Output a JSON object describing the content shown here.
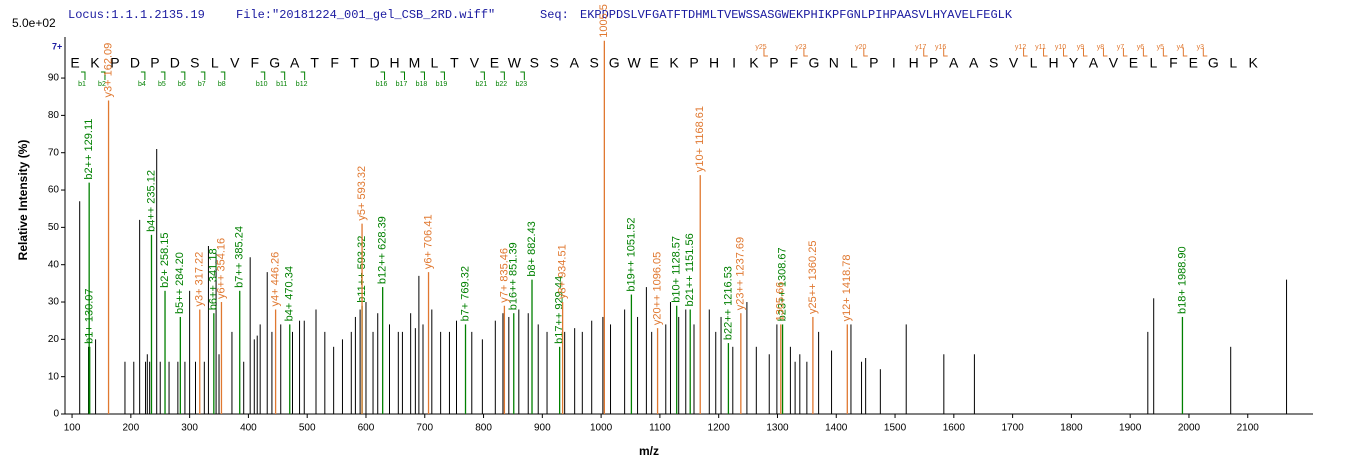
{
  "header": {
    "locus": "Locus:1.1.1.2135.19",
    "file": "File:\"20181224_001_gel_CSB_2RD.wiff\"",
    "seq_label": "Seq:",
    "seq": "EKPDPDSLVFGATFTDHMLTVEWSSASGWEKPHIKPFGNLPIHPAASVLHYAVELFEGLK"
  },
  "chart_data": {
    "type": "spectrum",
    "scale_label": "5.0e+02",
    "charge_label": "7+",
    "ylabel": "Relative  Intensity (%)",
    "xlabel": "m/z",
    "xlim": [
      88,
      2211
    ],
    "ylim": [
      0,
      101
    ],
    "xticks": [
      100,
      200,
      300,
      400,
      500,
      600,
      700,
      800,
      900,
      1000,
      1100,
      1200,
      1300,
      1400,
      1500,
      1600,
      1700,
      1800,
      1900,
      2000,
      2100
    ],
    "yticks": [
      0,
      10,
      20,
      30,
      40,
      50,
      60,
      70,
      80,
      90
    ],
    "residues": [
      "E",
      "K",
      "P",
      "D",
      "P",
      "D",
      "S",
      "L",
      "V",
      "F",
      "G",
      "A",
      "T",
      "F",
      "T",
      "D",
      "H",
      "M",
      "L",
      "T",
      "V",
      "E",
      "W",
      "S",
      "S",
      "A",
      "S",
      "G",
      "W",
      "E",
      "K",
      "P",
      "H",
      "I",
      "K",
      "P",
      "F",
      "G",
      "N",
      "L",
      "P",
      "I",
      "H",
      "P",
      "A",
      "A",
      "S",
      "V",
      "L",
      "H",
      "Y",
      "A",
      "V",
      "E",
      "L",
      "F",
      "E",
      "G",
      "L",
      "K"
    ],
    "b_markers": [
      "b1",
      "b2",
      "b4",
      "b5",
      "b6",
      "b7",
      "b8",
      "b10",
      "b11",
      "b12",
      "b16",
      "b17",
      "b18",
      "b19",
      "b21",
      "b22",
      "b23"
    ],
    "y_markers": [
      "y25",
      "y23",
      "y20",
      "y17",
      "y16",
      "y12",
      "y11",
      "y10",
      "y9",
      "y8",
      "y7",
      "y6",
      "y5",
      "y4",
      "y3"
    ],
    "peaks": {
      "color": "#000000",
      "x": [
        113,
        128,
        140,
        190,
        205,
        215,
        225,
        228,
        232,
        244,
        250,
        265,
        280,
        292,
        300,
        310,
        325,
        332,
        345,
        350,
        372,
        392,
        403,
        410,
        415,
        420,
        432,
        440,
        455,
        475,
        487,
        495,
        515,
        530,
        545,
        560,
        575,
        582,
        590,
        600,
        612,
        620,
        640,
        655,
        662,
        676,
        684,
        690,
        697,
        712,
        727,
        742,
        754,
        780,
        798,
        820,
        833,
        843,
        860,
        876,
        893,
        908,
        938,
        955,
        968,
        984,
        1003,
        1016,
        1040,
        1062,
        1077,
        1086,
        1110,
        1118,
        1132,
        1144,
        1158,
        1184,
        1195,
        1204,
        1224,
        1248,
        1264,
        1286,
        1299,
        1322,
        1330,
        1338,
        1350,
        1370,
        1392,
        1425,
        1443,
        1450,
        1475,
        1519,
        1583,
        1635,
        1930,
        1940,
        2071,
        2166
      ],
      "values": [
        57,
        18,
        20,
        14,
        14,
        52,
        14,
        16,
        14,
        71,
        14,
        14,
        14,
        14,
        33,
        14,
        14,
        45,
        43,
        16,
        22,
        14,
        42,
        20,
        21,
        24,
        38,
        22,
        24,
        22,
        25,
        25,
        28,
        22,
        18,
        20,
        22,
        26,
        28,
        30,
        22,
        27,
        24,
        22,
        22,
        27,
        23,
        37,
        24,
        28,
        22,
        22,
        25,
        22,
        20,
        25,
        27,
        26,
        28,
        27,
        24,
        22,
        22,
        23,
        22,
        25,
        26,
        24,
        28,
        26,
        34,
        22,
        24,
        30,
        26,
        28,
        24,
        28,
        22,
        26,
        18,
        30,
        18,
        16,
        24,
        18,
        14,
        16,
        14,
        22,
        17,
        24,
        14,
        15,
        12,
        24,
        16,
        16,
        22,
        31,
        18,
        36
      ]
    },
    "b_ions": {
      "color": "#008000",
      "x": [
        130.07,
        129.11,
        235.12,
        258.15,
        284.2,
        341.18,
        385.24,
        470.34,
        593.32,
        628.39,
        769.32,
        851.39,
        882.43,
        929.44,
        1051.52,
        1128.57,
        1151.56,
        1216.53,
        1308.67,
        1988.9
      ],
      "values": [
        18,
        62,
        48,
        33,
        26,
        27,
        33,
        24,
        29,
        34,
        24,
        27,
        36,
        18,
        32,
        29,
        28,
        19,
        24,
        26
      ],
      "labels": [
        "b1+ 130.07",
        "b2++ 129.11",
        "b4++ 235.12",
        "b2+ 258.15",
        "b5++ 284.20",
        "b6++ 341.18",
        "b7++ 385.24",
        "b4+ 470.34",
        "b11++ 593.32",
        "b12++ 628.39",
        "b7+ 769.32",
        "b16++ 851.39",
        "b8+ 882.43",
        "b17++ 929.44",
        "b19++ 1051.52",
        "b10+ 1128.57",
        "b21++ 1151.56",
        "b22++ 1216.53",
        "b23++ 1308.67",
        "b18+ 1988.90"
      ]
    },
    "y_ions": {
      "color": "#e07830",
      "x": [
        162.09,
        317.22,
        354.16,
        446.26,
        593.32,
        706.41,
        835.46,
        934.51,
        1005.5,
        1096.05,
        1168.61,
        1237.69,
        1305.66,
        1360.25,
        1418.78
      ],
      "values": [
        84,
        28,
        30,
        28,
        51,
        38,
        29,
        30,
        100,
        23,
        64,
        27,
        24,
        26,
        24
      ],
      "labels": [
        "y3+ 162.09",
        "y3+ 317.22",
        "y6++ 354.16",
        "y4+ 446.26",
        "y5+ 593.32",
        "y6+ 706.41",
        "y7+ 835.46",
        "y8+ 934.51",
        "1005.5",
        "y20++ 1096.05",
        "y10+ 1168.61",
        "y23++ 1237.69",
        "1305.66",
        "y25++ 1360.25",
        "y12+ 1418.78"
      ]
    }
  }
}
